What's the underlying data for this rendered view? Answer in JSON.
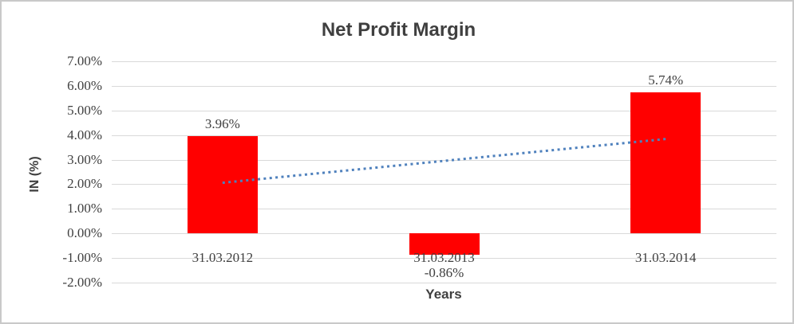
{
  "chart_data": {
    "type": "bar",
    "title": "Net Profit Margin",
    "xlabel": "Years",
    "ylabel": "IN (%)",
    "categories": [
      "31.03.2012",
      "31.03.2013",
      "31.03.2014"
    ],
    "values": [
      3.96,
      -0.86,
      5.74
    ],
    "data_labels": [
      "3.96%",
      "-0.86%",
      "5.74%"
    ],
    "ylim": [
      -2,
      7
    ],
    "ytick_step": 1,
    "ytick_labels": [
      "7.00%",
      "6.00%",
      "5.00%",
      "4.00%",
      "3.00%",
      "2.00%",
      "1.00%",
      "0.00%",
      "-1.00%",
      "-2.00%"
    ],
    "grid": true,
    "legend_position": "none",
    "trendline": {
      "type": "linear",
      "style": "dotted",
      "start_value": 2.06,
      "end_value": 3.84
    },
    "colors": {
      "bar": "#FF0000",
      "trendline": "#4F81BD",
      "gridline": "#D9D9D9",
      "text": "#404040",
      "title_text": "#3F3F3F",
      "chart_border": "#C9C9C9",
      "background": "#FFFFFF"
    }
  }
}
